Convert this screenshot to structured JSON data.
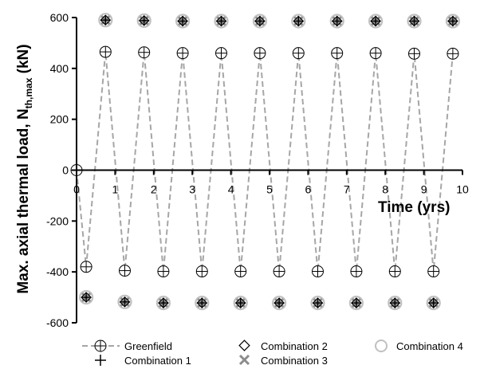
{
  "chart_data": {
    "type": "scatter",
    "xlabel": "Time (yrs)",
    "ylabel": {
      "main": "Max. axial thermal load, N",
      "subscript": "th,max",
      "unit": " (kN)"
    },
    "xlim": [
      0,
      10
    ],
    "ylim": [
      -600,
      600
    ],
    "x_ticks": [
      0,
      1,
      2,
      3,
      4,
      5,
      6,
      7,
      8,
      9,
      10
    ],
    "y_ticks": [
      -600,
      -400,
      -200,
      0,
      200,
      400,
      600
    ],
    "grid": false,
    "legend_position": "bottom",
    "series": [
      {
        "name": "Greenfield",
        "marker": "circle-plus",
        "line": "dashed",
        "color": "#a6a6a6",
        "points": [
          [
            0,
            0
          ],
          [
            0.25,
            -380
          ],
          [
            0.75,
            465
          ],
          [
            1.25,
            -395
          ],
          [
            1.75,
            463
          ],
          [
            2.25,
            -398
          ],
          [
            2.75,
            460
          ],
          [
            3.25,
            -398
          ],
          [
            3.75,
            460
          ],
          [
            4.25,
            -398
          ],
          [
            4.75,
            460
          ],
          [
            5.25,
            -398
          ],
          [
            5.75,
            460
          ],
          [
            6.25,
            -398
          ],
          [
            6.75,
            460
          ],
          [
            7.25,
            -398
          ],
          [
            7.75,
            460
          ],
          [
            8.25,
            -398
          ],
          [
            8.75,
            458
          ],
          [
            9.25,
            -398
          ],
          [
            9.75,
            458
          ]
        ]
      },
      {
        "name": "Combination 1",
        "marker": "plus",
        "color": "#000000",
        "points": [
          [
            0.25,
            -500
          ],
          [
            0.75,
            590
          ],
          [
            1.25,
            -518
          ],
          [
            1.75,
            588
          ],
          [
            2.25,
            -522
          ],
          [
            2.75,
            586
          ],
          [
            3.25,
            -522
          ],
          [
            3.75,
            586
          ],
          [
            4.25,
            -522
          ],
          [
            4.75,
            586
          ],
          [
            5.25,
            -522
          ],
          [
            5.75,
            586
          ],
          [
            6.25,
            -522
          ],
          [
            6.75,
            586
          ],
          [
            7.25,
            -522
          ],
          [
            7.75,
            586
          ],
          [
            8.25,
            -522
          ],
          [
            8.75,
            586
          ],
          [
            9.25,
            -522
          ],
          [
            9.75,
            586
          ]
        ]
      },
      {
        "name": "Combination 2",
        "marker": "diamond",
        "color": "#000000",
        "points": [
          [
            0.25,
            -500
          ],
          [
            0.75,
            590
          ],
          [
            1.25,
            -518
          ],
          [
            1.75,
            588
          ],
          [
            2.25,
            -522
          ],
          [
            2.75,
            586
          ],
          [
            3.25,
            -522
          ],
          [
            3.75,
            586
          ],
          [
            4.25,
            -522
          ],
          [
            4.75,
            586
          ],
          [
            5.25,
            -522
          ],
          [
            5.75,
            586
          ],
          [
            6.25,
            -522
          ],
          [
            6.75,
            586
          ],
          [
            7.25,
            -522
          ],
          [
            7.75,
            586
          ],
          [
            8.25,
            -522
          ],
          [
            8.75,
            586
          ],
          [
            9.25,
            -522
          ],
          [
            9.75,
            586
          ]
        ]
      },
      {
        "name": "Combination 3",
        "marker": "x",
        "color": "#8c8c8c",
        "points": [
          [
            0.25,
            -500
          ],
          [
            0.75,
            590
          ],
          [
            1.25,
            -518
          ],
          [
            1.75,
            588
          ],
          [
            2.25,
            -522
          ],
          [
            2.75,
            586
          ],
          [
            3.25,
            -522
          ],
          [
            3.75,
            586
          ],
          [
            4.25,
            -522
          ],
          [
            4.75,
            586
          ],
          [
            5.25,
            -522
          ],
          [
            5.75,
            586
          ],
          [
            6.25,
            -522
          ],
          [
            6.75,
            586
          ],
          [
            7.25,
            -522
          ],
          [
            7.75,
            586
          ],
          [
            8.25,
            -522
          ],
          [
            8.75,
            586
          ],
          [
            9.25,
            -522
          ],
          [
            9.75,
            586
          ]
        ]
      },
      {
        "name": "Combination 4",
        "marker": "circle",
        "color": "#c0c0c0",
        "points": [
          [
            0.25,
            -500
          ],
          [
            0.75,
            590
          ],
          [
            1.25,
            -518
          ],
          [
            1.75,
            588
          ],
          [
            2.25,
            -522
          ],
          [
            2.75,
            586
          ],
          [
            3.25,
            -522
          ],
          [
            3.75,
            586
          ],
          [
            4.25,
            -522
          ],
          [
            4.75,
            586
          ],
          [
            5.25,
            -522
          ],
          [
            5.75,
            586
          ],
          [
            6.25,
            -522
          ],
          [
            6.75,
            586
          ],
          [
            7.25,
            -522
          ],
          [
            7.75,
            586
          ],
          [
            8.25,
            -522
          ],
          [
            8.75,
            586
          ],
          [
            9.25,
            -522
          ],
          [
            9.75,
            586
          ]
        ]
      }
    ]
  }
}
